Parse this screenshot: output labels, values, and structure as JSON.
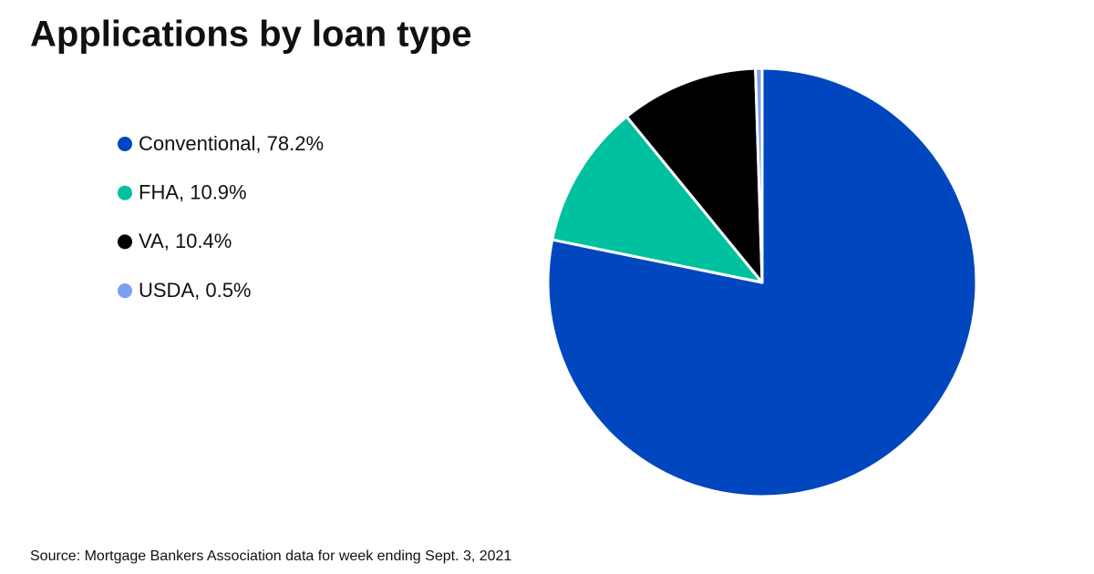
{
  "chart_data": {
    "type": "pie",
    "title": "Applications by loan type",
    "categories": [
      "Conventional, 78.2%",
      "FHA, 10.9%",
      "VA, 10.4%",
      "USDA, 0.5%"
    ],
    "values": [
      78.2,
      10.9,
      10.4,
      0.5
    ],
    "colors": [
      "#0047bf",
      "#00c19f",
      "#000000",
      "#7b9ef0"
    ],
    "source": "Source: Mortgage Bankers Association data for week ending Sept. 3, 2021"
  }
}
